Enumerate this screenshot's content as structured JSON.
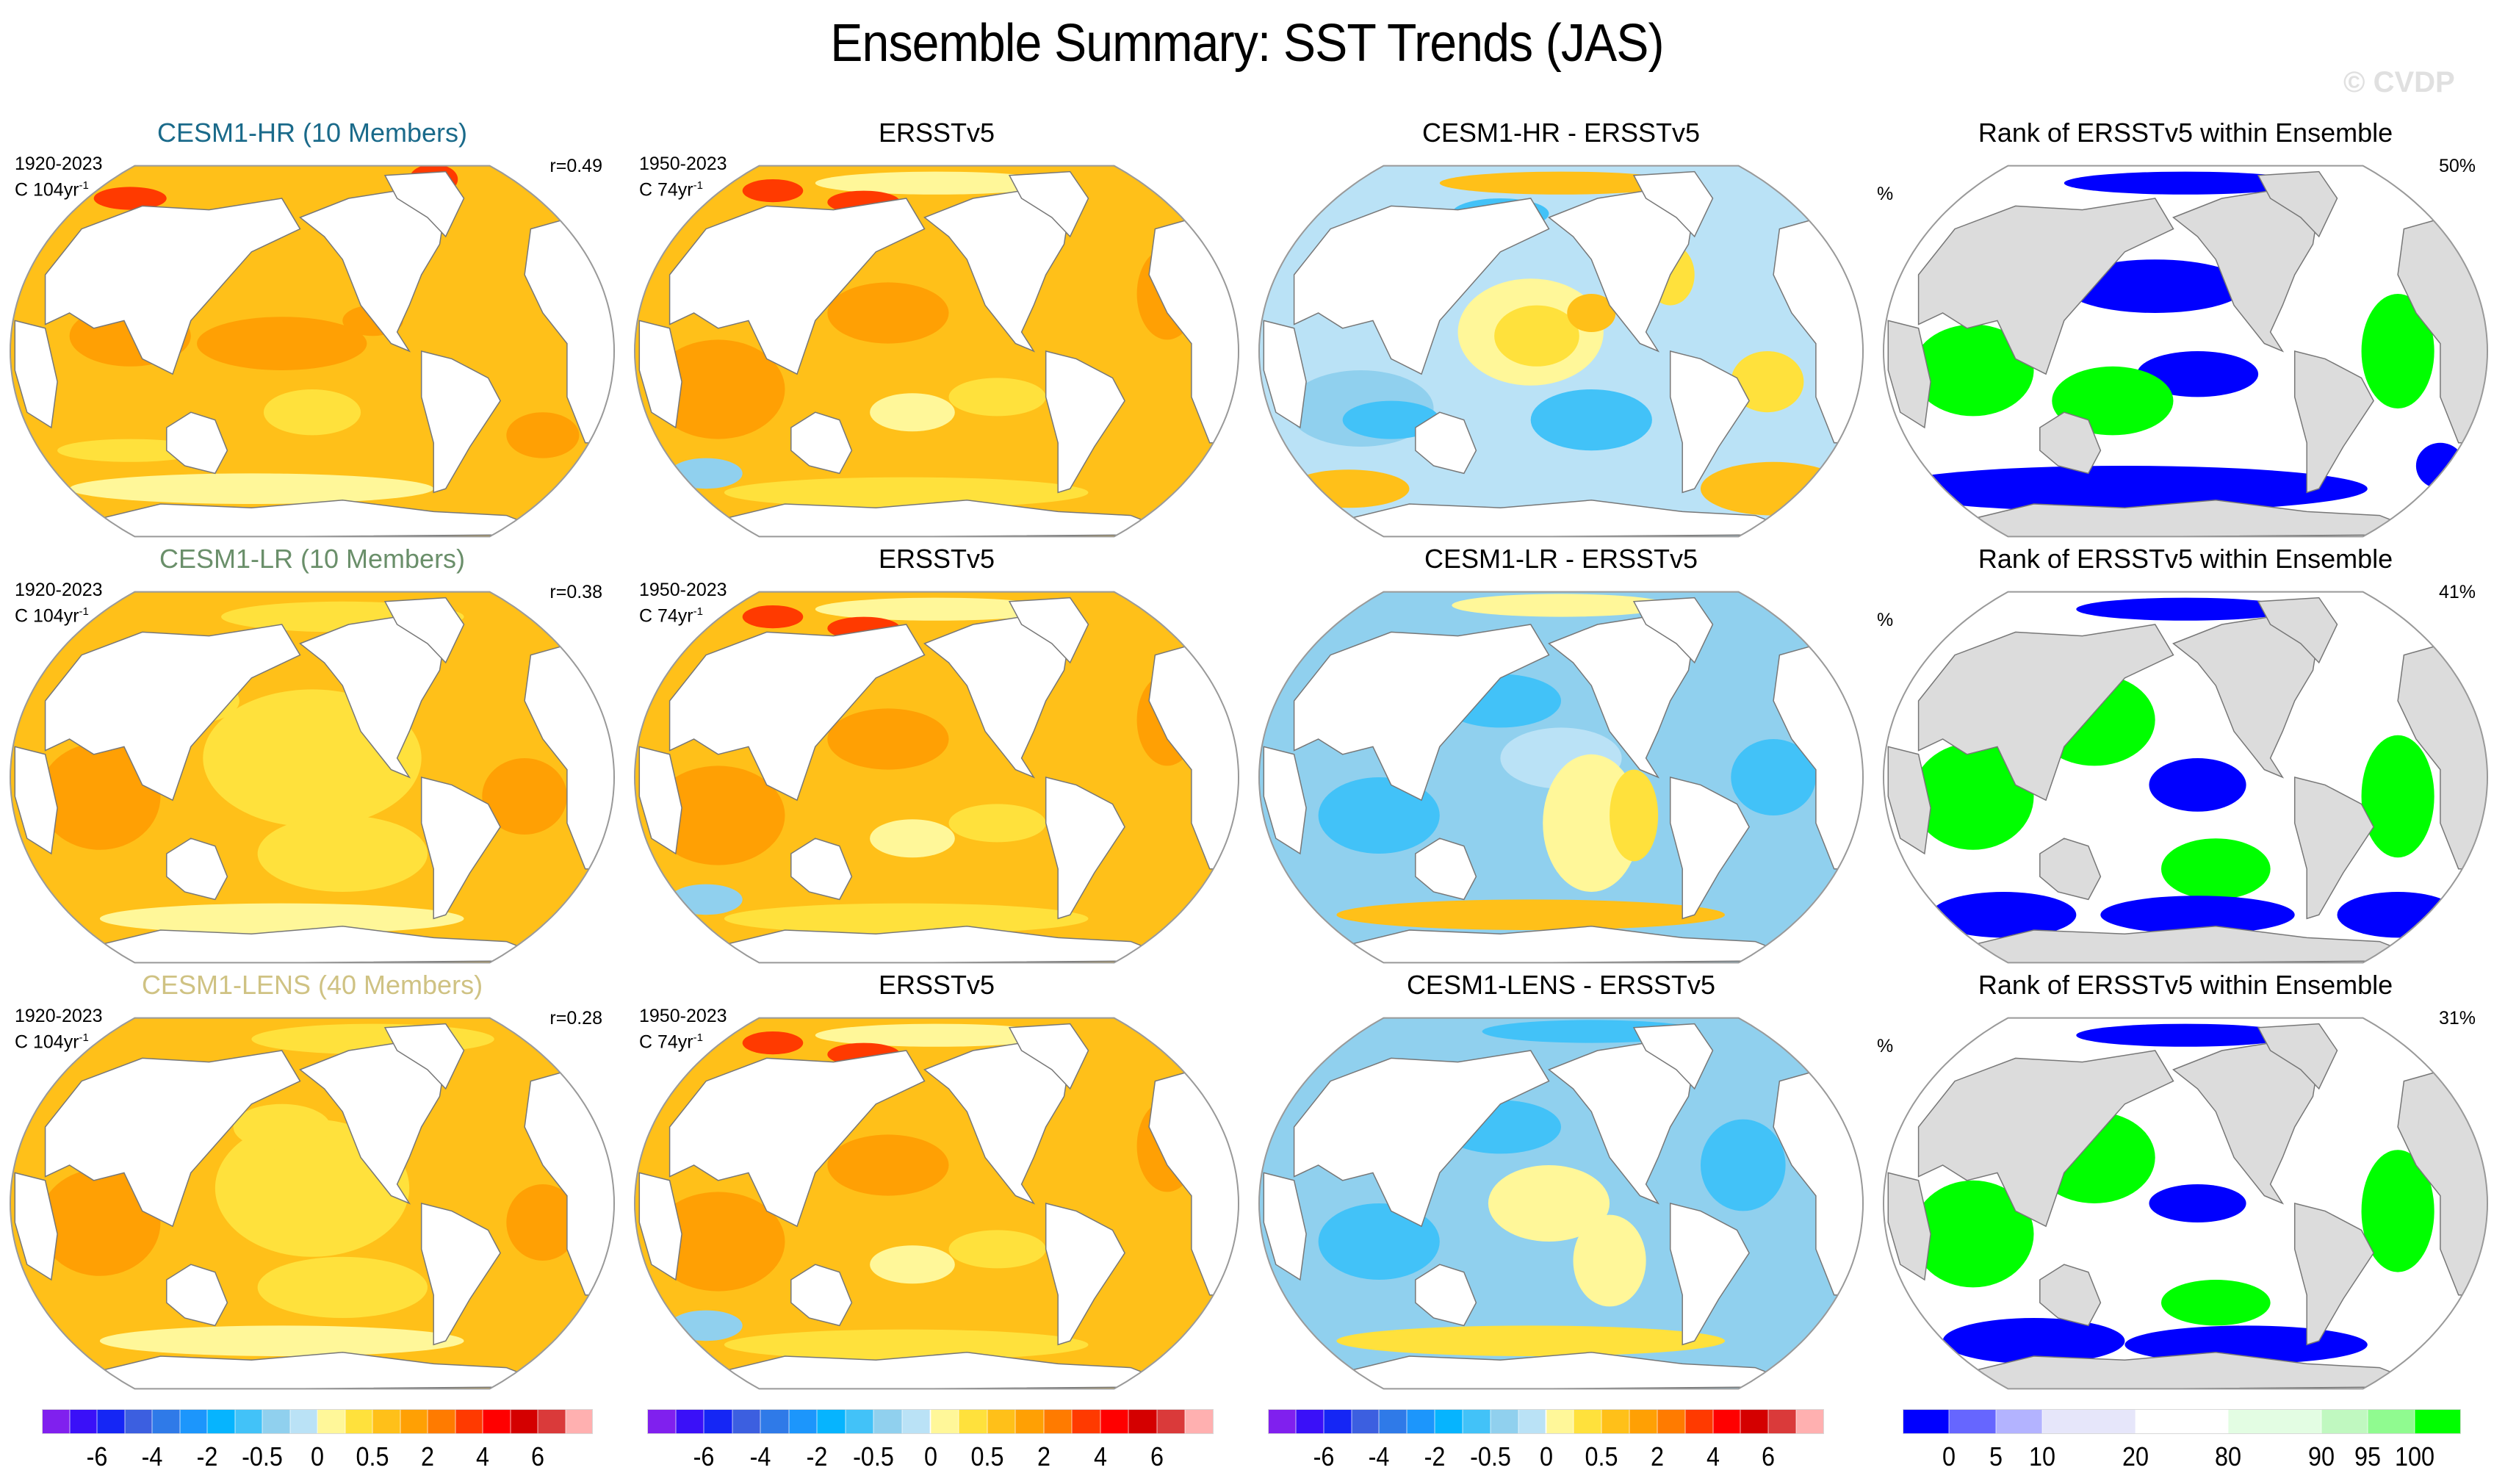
{
  "title": "Ensemble Summary: SST Trends (JAS)",
  "watermark": "© CVDP",
  "rows": [
    {
      "model": {
        "title": "CESM1-HR (10 Members)",
        "title_color": "#1a6a8a",
        "period": "1920-2023",
        "units_prefix": "C 104yr",
        "units_exp": "-1",
        "pattern_corr": "r=0.49",
        "field": "model_hr"
      },
      "obs": {
        "title": "ERSSTv5",
        "period": "1950-2023",
        "units_prefix": "C 74yr",
        "units_exp": "-1",
        "field": "obs"
      },
      "diff": {
        "title": "CESM1-HR - ERSSTv5",
        "field": "diff_hr"
      },
      "rank": {
        "title": "Rank of ERSSTv5 within Ensemble",
        "pct_label": "%",
        "area_pct": "50%",
        "field": "rank_hr"
      }
    },
    {
      "model": {
        "title": "CESM1-LR (10 Members)",
        "title_color": "#6a8f6a",
        "period": "1920-2023",
        "units_prefix": "C 104yr",
        "units_exp": "-1",
        "pattern_corr": "r=0.38",
        "field": "model_lr"
      },
      "obs": {
        "title": "ERSSTv5",
        "period": "1950-2023",
        "units_prefix": "C 74yr",
        "units_exp": "-1",
        "field": "obs"
      },
      "diff": {
        "title": "CESM1-LR - ERSSTv5",
        "field": "diff_lr"
      },
      "rank": {
        "title": "Rank of ERSSTv5 within Ensemble",
        "pct_label": "%",
        "area_pct": "41%",
        "field": "rank_lr"
      }
    },
    {
      "model": {
        "title": "CESM1-LENS (40 Members)",
        "title_color": "#cfc283",
        "period": "1920-2023",
        "units_prefix": "C 104yr",
        "units_exp": "-1",
        "pattern_corr": "r=0.28",
        "field": "model_lens"
      },
      "obs": {
        "title": "ERSSTv5",
        "period": "1950-2023",
        "units_prefix": "C 74yr",
        "units_exp": "-1",
        "field": "obs"
      },
      "diff": {
        "title": "CESM1-LENS - ERSSTv5",
        "field": "diff_lens"
      },
      "rank": {
        "title": "Rank of ERSSTv5 within Ensemble",
        "pct_label": "%",
        "area_pct": "31%",
        "field": "rank_lens"
      }
    }
  ],
  "colorbars": {
    "trend": {
      "colors": [
        "#8020ee",
        "#3a10f8",
        "#1526f5",
        "#3c5fe0",
        "#2f7ae8",
        "#1c96fc",
        "#06b4fe",
        "#42c2f8",
        "#90d0ee",
        "#bae2f6",
        "#fff799",
        "#ffe13c",
        "#ffc019",
        "#ffa004",
        "#ff7b00",
        "#ff3a00",
        "#ff0000",
        "#d40000",
        "#da3a3a",
        "#ffb0b0"
      ],
      "tick_labels": [
        {
          "label": "-6",
          "boundary": 2
        },
        {
          "label": "-4",
          "boundary": 4
        },
        {
          "label": "-2",
          "boundary": 6
        },
        {
          "label": "-0.5",
          "boundary": 8
        },
        {
          "label": "0",
          "boundary": 10
        },
        {
          "label": "0.5",
          "boundary": 12
        },
        {
          "label": "2",
          "boundary": 14
        },
        {
          "label": "4",
          "boundary": 16
        },
        {
          "label": "6",
          "boundary": 18
        }
      ]
    },
    "rank": {
      "colors": [
        "#0000ff",
        "#6666ff",
        "#b3b3ff",
        "#e6e6fa",
        "#ffffff",
        "#e3fde3",
        "#c0f8c0",
        "#90fb90",
        "#00ff00"
      ],
      "widths": [
        1,
        1,
        1,
        2,
        2,
        2,
        1,
        1,
        1
      ],
      "tick_labels": [
        {
          "label": "0",
          "boundary": 1
        },
        {
          "label": "5",
          "boundary": 2
        },
        {
          "label": "10",
          "boundary": 3
        },
        {
          "label": "20",
          "boundary": 4
        },
        {
          "label": "80",
          "boundary": 5
        },
        {
          "label": "90",
          "boundary": 6
        },
        {
          "label": "95",
          "boundary": 7
        },
        {
          "label": "100",
          "boundary": 8
        }
      ]
    }
  },
  "chart_data": [
    {
      "type": "heatmap",
      "title": "CESM1-HR (10 Members)",
      "period": "1920-2023",
      "units": "C 104yr-1",
      "pattern_correlation": 0.49,
      "colorbar_ticks": [
        -6,
        -4,
        -2,
        -0.5,
        0,
        0.5,
        2,
        4,
        6
      ]
    },
    {
      "type": "heatmap",
      "title": "ERSSTv5",
      "period": "1950-2023",
      "units": "C 74yr-1",
      "colorbar_ticks": [
        -6,
        -4,
        -2,
        -0.5,
        0,
        0.5,
        2,
        4,
        6
      ]
    },
    {
      "type": "heatmap",
      "title": "CESM1-HR - ERSSTv5",
      "colorbar_ticks": [
        -6,
        -4,
        -2,
        -0.5,
        0,
        0.5,
        2,
        4,
        6
      ]
    },
    {
      "type": "heatmap",
      "title": "Rank of ERSSTv5 within Ensemble",
      "area_percent": 50,
      "colorbar_ticks": [
        0,
        5,
        10,
        20,
        80,
        90,
        95,
        100
      ]
    },
    {
      "type": "heatmap",
      "title": "CESM1-LR (10 Members)",
      "period": "1920-2023",
      "units": "C 104yr-1",
      "pattern_correlation": 0.38
    },
    {
      "type": "heatmap",
      "title": "ERSSTv5",
      "period": "1950-2023",
      "units": "C 74yr-1"
    },
    {
      "type": "heatmap",
      "title": "CESM1-LR - ERSSTv5"
    },
    {
      "type": "heatmap",
      "title": "Rank of ERSSTv5 within Ensemble",
      "area_percent": 41
    },
    {
      "type": "heatmap",
      "title": "CESM1-LENS (40 Members)",
      "period": "1920-2023",
      "units": "C 104yr-1",
      "pattern_correlation": 0.28
    },
    {
      "type": "heatmap",
      "title": "ERSSTv5",
      "period": "1950-2023",
      "units": "C 74yr-1"
    },
    {
      "type": "heatmap",
      "title": "CESM1-LENS - ERSSTv5"
    },
    {
      "type": "heatmap",
      "title": "Rank of ERSSTv5 within Ensemble",
      "area_percent": 31
    }
  ]
}
